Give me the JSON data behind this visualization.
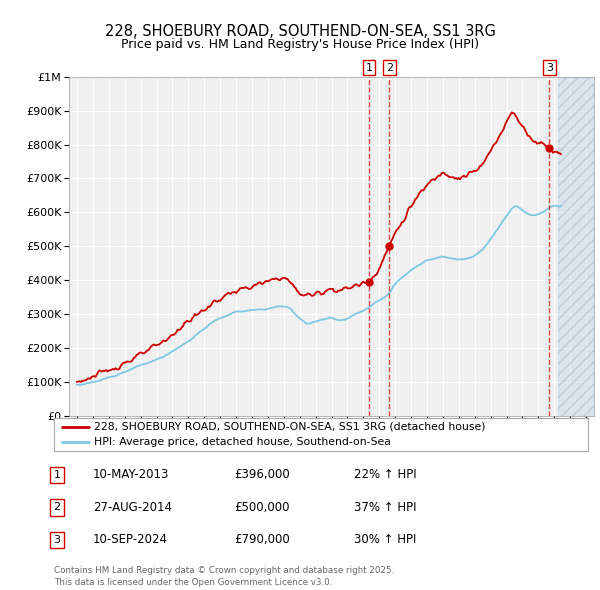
{
  "title": "228, SHOEBURY ROAD, SOUTHEND-ON-SEA, SS1 3RG",
  "subtitle": "Price paid vs. HM Land Registry's House Price Index (HPI)",
  "legend_line1": "228, SHOEBURY ROAD, SOUTHEND-ON-SEA, SS1 3RG (detached house)",
  "legend_line2": "HPI: Average price, detached house, Southend-on-Sea",
  "sales": [
    {
      "num": 1,
      "date": "10-MAY-2013",
      "price": 396000,
      "change": "22% ↑ HPI",
      "year": 2013.36
    },
    {
      "num": 2,
      "date": "27-AUG-2014",
      "price": 500000,
      "change": "37% ↑ HPI",
      "year": 2014.64
    },
    {
      "num": 3,
      "date": "10-SEP-2024",
      "price": 790000,
      "change": "30% ↑ HPI",
      "year": 2024.69
    }
  ],
  "footer": "Contains HM Land Registry data © Crown copyright and database right 2025.\nThis data is licensed under the Open Government Licence v3.0.",
  "hpi_color": "#7ec8e3",
  "price_color": "#cc0000",
  "background_color": "#ffffff",
  "plot_bg_color": "#f0f0f0",
  "grid_color": "#ffffff",
  "ylim": [
    0,
    1000000
  ],
  "xlim": [
    1994.5,
    2027.5
  ],
  "hatch_start": 2025.25
}
